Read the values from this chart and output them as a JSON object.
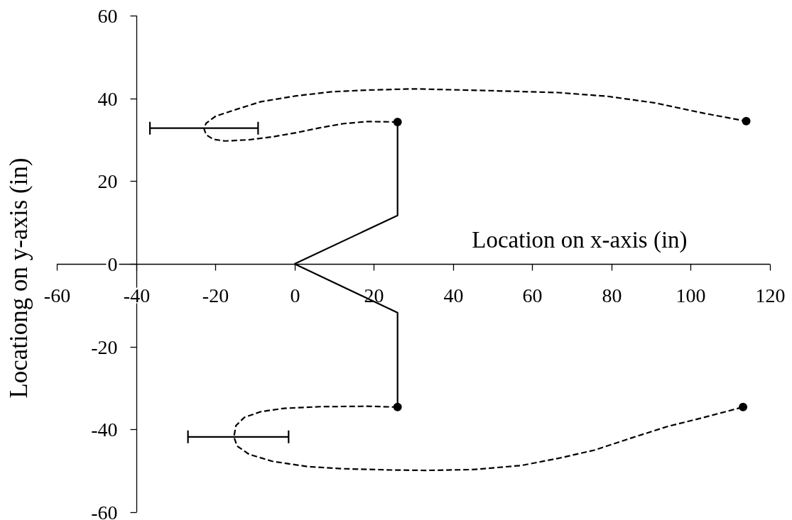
{
  "chart_data": {
    "type": "line",
    "xlabel": "Location on x-axis (in)",
    "ylabel": "Locationg on y-axis (in)",
    "xlim": [
      -60,
      120
    ],
    "xticks": [
      -60,
      -40,
      -20,
      0,
      20,
      40,
      60,
      80,
      100,
      120
    ],
    "ylim": [
      -60,
      60
    ],
    "yticks": [
      -60,
      -40,
      -20,
      0,
      20,
      40,
      60
    ],
    "grid": false,
    "series": [
      {
        "color": "#000000",
        "line_style": "solid",
        "marker": "none",
        "x": [
          0,
          26,
          26
        ],
        "values": [
          0,
          11.7,
          34.3
        ]
      },
      {
        "color": "#000000",
        "line_style": "solid",
        "marker": "none",
        "x": [
          0,
          26,
          26
        ],
        "values": [
          0,
          -11.8,
          -34.6
        ]
      },
      {
        "color": "#000000",
        "line_style": "dashed",
        "marker": "none",
        "x": [
          26,
          18.4,
          12.4,
          6.4,
          0.4,
          -5.6,
          -11.5,
          -17.5,
          -20.5,
          -22.3,
          -22.9,
          -22.3,
          -19.9,
          -14.5,
          -8.5,
          0.4,
          9.4,
          18.4,
          30,
          48,
          66.5,
          79,
          91,
          103.3,
          114
        ],
        "values": [
          34.3,
          34.4,
          33.9,
          32.9,
          31.7,
          30.7,
          30,
          29.7,
          30.1,
          31.2,
          32.8,
          34,
          35.7,
          37.4,
          39.2,
          40.6,
          41.6,
          42,
          42.3,
          41.9,
          41.4,
          40.5,
          38.9,
          36.4,
          34.5
        ],
        "xerrors": [
          null,
          null,
          null,
          null,
          null,
          null,
          null,
          null,
          null,
          null,
          [
            -36.5,
            -9.2
          ],
          null,
          null,
          null,
          null,
          null,
          null,
          null,
          null,
          null,
          null,
          null,
          null,
          null,
          null
        ]
      },
      {
        "color": "#000000",
        "line_style": "dashed",
        "marker": "none",
        "x": [
          26,
          18.4,
          6.4,
          -2.6,
          -8.5,
          -12.7,
          -14.8,
          -15.3,
          -14.5,
          -11.5,
          -5.6,
          3.4,
          12.4,
          24.4,
          33,
          45.1,
          57.3,
          66.5,
          75.7,
          84.9,
          94.1,
          103.3,
          113.2
        ],
        "values": [
          -34.6,
          -34.4,
          -34.5,
          -34.9,
          -35.7,
          -37.1,
          -39.1,
          -41.8,
          -44,
          -46,
          -47.7,
          -49,
          -49.5,
          -49.8,
          -49.9,
          -49.7,
          -48.7,
          -47,
          -45,
          -42.1,
          -39.3,
          -37.1,
          -34.6
        ],
        "xerrors": [
          null,
          null,
          null,
          null,
          null,
          null,
          null,
          [
            -26.9,
            -1.5
          ],
          null,
          null,
          null,
          null,
          null,
          null,
          null,
          null,
          null,
          null,
          null,
          null,
          null,
          null,
          null
        ]
      },
      {
        "type": "scatter",
        "color": "#000000",
        "marker": "circle",
        "x": [
          26,
          114,
          26,
          113.2
        ],
        "values": [
          34.3,
          34.5,
          -34.6,
          -34.6
        ]
      }
    ]
  }
}
